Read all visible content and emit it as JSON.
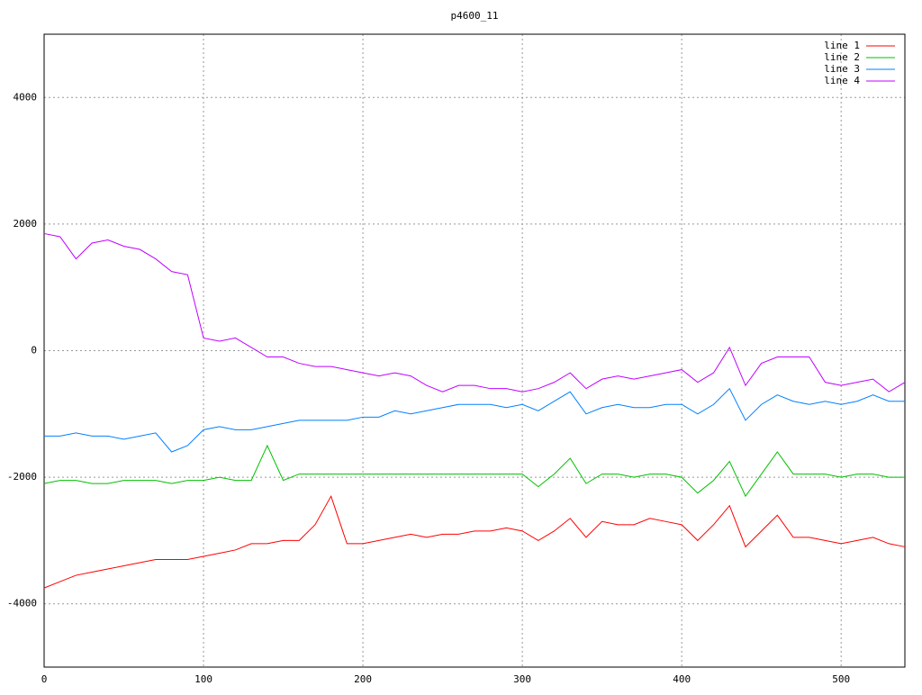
{
  "chart_data": {
    "type": "line",
    "title": "p4600_11",
    "x": [
      0,
      10,
      20,
      30,
      40,
      50,
      60,
      70,
      80,
      90,
      100,
      110,
      120,
      130,
      140,
      150,
      160,
      170,
      180,
      190,
      200,
      210,
      220,
      230,
      240,
      250,
      260,
      270,
      280,
      290,
      300,
      310,
      320,
      330,
      340,
      350,
      360,
      370,
      380,
      390,
      400,
      410,
      420,
      430,
      440,
      450,
      460,
      470,
      480,
      490,
      500,
      510,
      520,
      530,
      540
    ],
    "series": [
      {
        "name": "line 1",
        "color": "#ff0000",
        "values": [
          -3750,
          -3650,
          -3550,
          -3500,
          -3450,
          -3400,
          -3350,
          -3300,
          -3300,
          -3300,
          -3250,
          -3200,
          -3150,
          -3050,
          -3050,
          -3000,
          -3000,
          -2750,
          -2300,
          -3050,
          -3050,
          -3000,
          -2950,
          -2900,
          -2950,
          -2900,
          -2900,
          -2850,
          -2850,
          -2800,
          -2850,
          -3000,
          -2850,
          -2650,
          -2950,
          -2700,
          -2750,
          -2750,
          -2650,
          -2700,
          -2750,
          -3000,
          -2750,
          -2450,
          -3100,
          -2850,
          -2600,
          -2950,
          -2950,
          -3000,
          -3050,
          -3000,
          -2950,
          -3050,
          -3100
        ]
      },
      {
        "name": "line 2",
        "color": "#00c000",
        "values": [
          -2100,
          -2050,
          -2050,
          -2100,
          -2100,
          -2050,
          -2050,
          -2050,
          -2100,
          -2050,
          -2050,
          -2000,
          -2050,
          -2050,
          -1500,
          -2050,
          -1950,
          -1950,
          -1950,
          -1950,
          -1950,
          -1950,
          -1950,
          -1950,
          -1950,
          -1950,
          -1950,
          -1950,
          -1950,
          -1950,
          -1950,
          -2150,
          -1950,
          -1700,
          -2100,
          -1950,
          -1950,
          -2000,
          -1950,
          -1950,
          -2000,
          -2250,
          -2050,
          -1750,
          -2300,
          -1950,
          -1600,
          -1950,
          -1950,
          -1950,
          -2000,
          -1950,
          -1950,
          -2000,
          -2000
        ]
      },
      {
        "name": "line 3",
        "color": "#0080ff",
        "values": [
          -1350,
          -1350,
          -1300,
          -1350,
          -1350,
          -1400,
          -1350,
          -1300,
          -1600,
          -1500,
          -1250,
          -1200,
          -1250,
          -1250,
          -1200,
          -1150,
          -1100,
          -1100,
          -1100,
          -1100,
          -1050,
          -1050,
          -950,
          -1000,
          -950,
          -900,
          -850,
          -850,
          -850,
          -900,
          -850,
          -950,
          -800,
          -650,
          -1000,
          -900,
          -850,
          -900,
          -900,
          -850,
          -850,
          -1000,
          -850,
          -600,
          -1100,
          -850,
          -700,
          -800,
          -850,
          -800,
          -850,
          -800,
          -700,
          -800,
          -800
        ]
      },
      {
        "name": "line 4",
        "color": "#c000ff",
        "values": [
          1850,
          1800,
          1450,
          1700,
          1750,
          1650,
          1600,
          1450,
          1250,
          1200,
          200,
          150,
          200,
          50,
          -100,
          -100,
          -200,
          -250,
          -250,
          -300,
          -350,
          -400,
          -350,
          -400,
          -550,
          -650,
          -550,
          -550,
          -600,
          -600,
          -650,
          -600,
          -500,
          -350,
          -600,
          -450,
          -400,
          -450,
          -400,
          -350,
          -300,
          -500,
          -350,
          50,
          -550,
          -200,
          -100,
          -100,
          -100,
          -500,
          -550,
          -500,
          -450,
          -650,
          -500
        ]
      }
    ],
    "xlim": [
      0,
      540
    ],
    "ylim": [
      -5000,
      5000
    ],
    "xticks": [
      0,
      100,
      200,
      300,
      400,
      500
    ],
    "yticks": [
      -4000,
      -2000,
      0,
      2000,
      4000
    ],
    "grid": true,
    "legend": "top-right"
  }
}
